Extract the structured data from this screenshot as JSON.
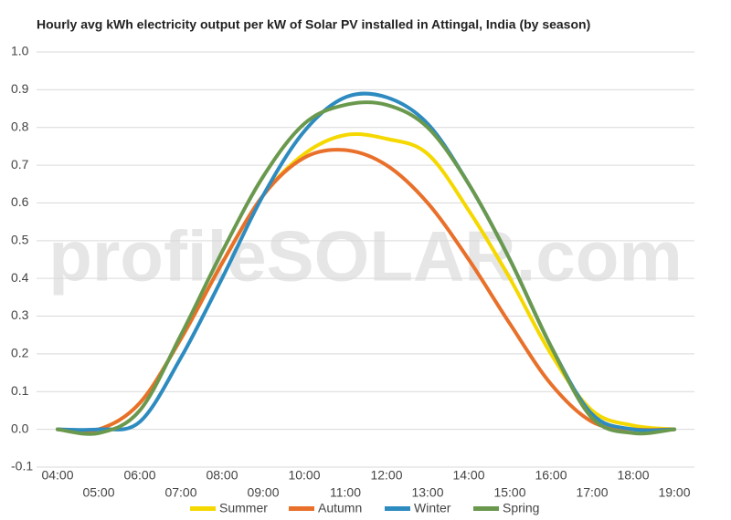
{
  "chart_data": {
    "type": "line",
    "title": "Hourly avg kWh electricity output per kW of Solar PV installed in Attingal, India (by season)",
    "watermark": "profileSOLAR.com",
    "categories": [
      "04:00",
      "05:00",
      "06:00",
      "07:00",
      "08:00",
      "09:00",
      "10:00",
      "11:00",
      "12:00",
      "13:00",
      "14:00",
      "15:00",
      "16:00",
      "17:00",
      "18:00",
      "19:00"
    ],
    "series": [
      {
        "name": "Summer",
        "color": "#f5d800",
        "values": [
          0,
          0,
          0.07,
          0.24,
          0.44,
          0.62,
          0.73,
          0.78,
          0.77,
          0.73,
          0.58,
          0.4,
          0.2,
          0.05,
          0.01,
          0
        ]
      },
      {
        "name": "Autumn",
        "color": "#e8702a",
        "values": [
          0,
          0,
          0.07,
          0.24,
          0.44,
          0.62,
          0.72,
          0.74,
          0.7,
          0.6,
          0.45,
          0.28,
          0.12,
          0.02,
          0,
          0
        ]
      },
      {
        "name": "Winter",
        "color": "#2e8bc0",
        "values": [
          0,
          0,
          0.02,
          0.19,
          0.4,
          0.62,
          0.79,
          0.88,
          0.88,
          0.81,
          0.65,
          0.45,
          0.22,
          0.04,
          0,
          0
        ]
      },
      {
        "name": "Spring",
        "color": "#6a994e",
        "values": [
          0,
          -0.01,
          0.05,
          0.25,
          0.47,
          0.67,
          0.81,
          0.86,
          0.86,
          0.8,
          0.65,
          0.45,
          0.22,
          0.03,
          -0.01,
          0
        ]
      }
    ],
    "ylim": [
      -0.1,
      1.0
    ],
    "yticks": [
      -0.1,
      {
        "value": 0,
        "label": "0.0"
      },
      0.1,
      0.2,
      0.3,
      0.4,
      0.5,
      0.6,
      0.7,
      0.8,
      0.9,
      {
        "value": 1,
        "label": "1.0"
      }
    ],
    "grid": true,
    "legend": "bottom"
  }
}
